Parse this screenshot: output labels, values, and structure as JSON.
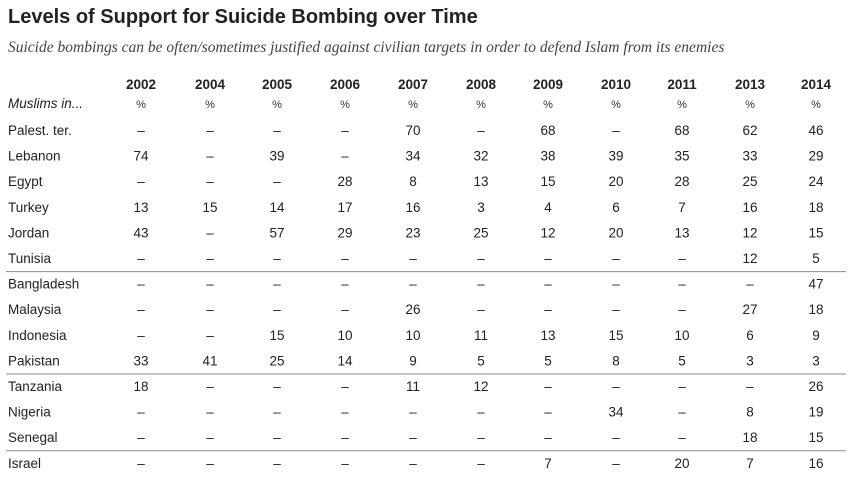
{
  "chart_data": {
    "type": "table",
    "title": "Levels of Support for Suicide Bombing over Time",
    "subtitle": "Suicide bombings can be often/sometimes justified against civilian targets in order to defend Islam from its enemies",
    "row_header": "Muslims in...",
    "unit_label": "%",
    "missing_marker": "–",
    "columns": [
      "2002",
      "2004",
      "2005",
      "2006",
      "2007",
      "2008",
      "2009",
      "2010",
      "2011",
      "2013",
      "2014"
    ],
    "groups": [
      {
        "rows": [
          {
            "label": "Palest. ter.",
            "values": [
              null,
              null,
              null,
              null,
              70,
              null,
              68,
              null,
              68,
              62,
              46
            ]
          },
          {
            "label": "Lebanon",
            "values": [
              74,
              null,
              39,
              null,
              34,
              32,
              38,
              39,
              35,
              33,
              29
            ]
          },
          {
            "label": "Egypt",
            "values": [
              null,
              null,
              null,
              28,
              8,
              13,
              15,
              20,
              28,
              25,
              24
            ]
          },
          {
            "label": "Turkey",
            "values": [
              13,
              15,
              14,
              17,
              16,
              3,
              4,
              6,
              7,
              16,
              18
            ]
          },
          {
            "label": "Jordan",
            "values": [
              43,
              null,
              57,
              29,
              23,
              25,
              12,
              20,
              13,
              12,
              15
            ]
          },
          {
            "label": "Tunisia",
            "values": [
              null,
              null,
              null,
              null,
              null,
              null,
              null,
              null,
              null,
              12,
              5
            ]
          }
        ]
      },
      {
        "rows": [
          {
            "label": "Bangladesh",
            "values": [
              null,
              null,
              null,
              null,
              null,
              null,
              null,
              null,
              null,
              null,
              47
            ]
          },
          {
            "label": "Malaysia",
            "values": [
              null,
              null,
              null,
              null,
              26,
              null,
              null,
              null,
              null,
              27,
              18
            ]
          },
          {
            "label": "Indonesia",
            "values": [
              null,
              null,
              15,
              10,
              10,
              11,
              13,
              15,
              10,
              6,
              9
            ]
          },
          {
            "label": "Pakistan",
            "values": [
              33,
              41,
              25,
              14,
              9,
              5,
              5,
              8,
              5,
              3,
              3
            ]
          }
        ]
      },
      {
        "rows": [
          {
            "label": "Tanzania",
            "values": [
              18,
              null,
              null,
              null,
              11,
              12,
              null,
              null,
              null,
              null,
              26
            ]
          },
          {
            "label": "Nigeria",
            "values": [
              null,
              null,
              null,
              null,
              null,
              null,
              null,
              34,
              null,
              8,
              19
            ]
          },
          {
            "label": "Senegal",
            "values": [
              null,
              null,
              null,
              null,
              null,
              null,
              null,
              null,
              null,
              18,
              15
            ]
          }
        ]
      },
      {
        "rows": [
          {
            "label": "Israel",
            "values": [
              null,
              null,
              null,
              null,
              null,
              null,
              7,
              null,
              20,
              7,
              16
            ]
          }
        ]
      }
    ]
  }
}
